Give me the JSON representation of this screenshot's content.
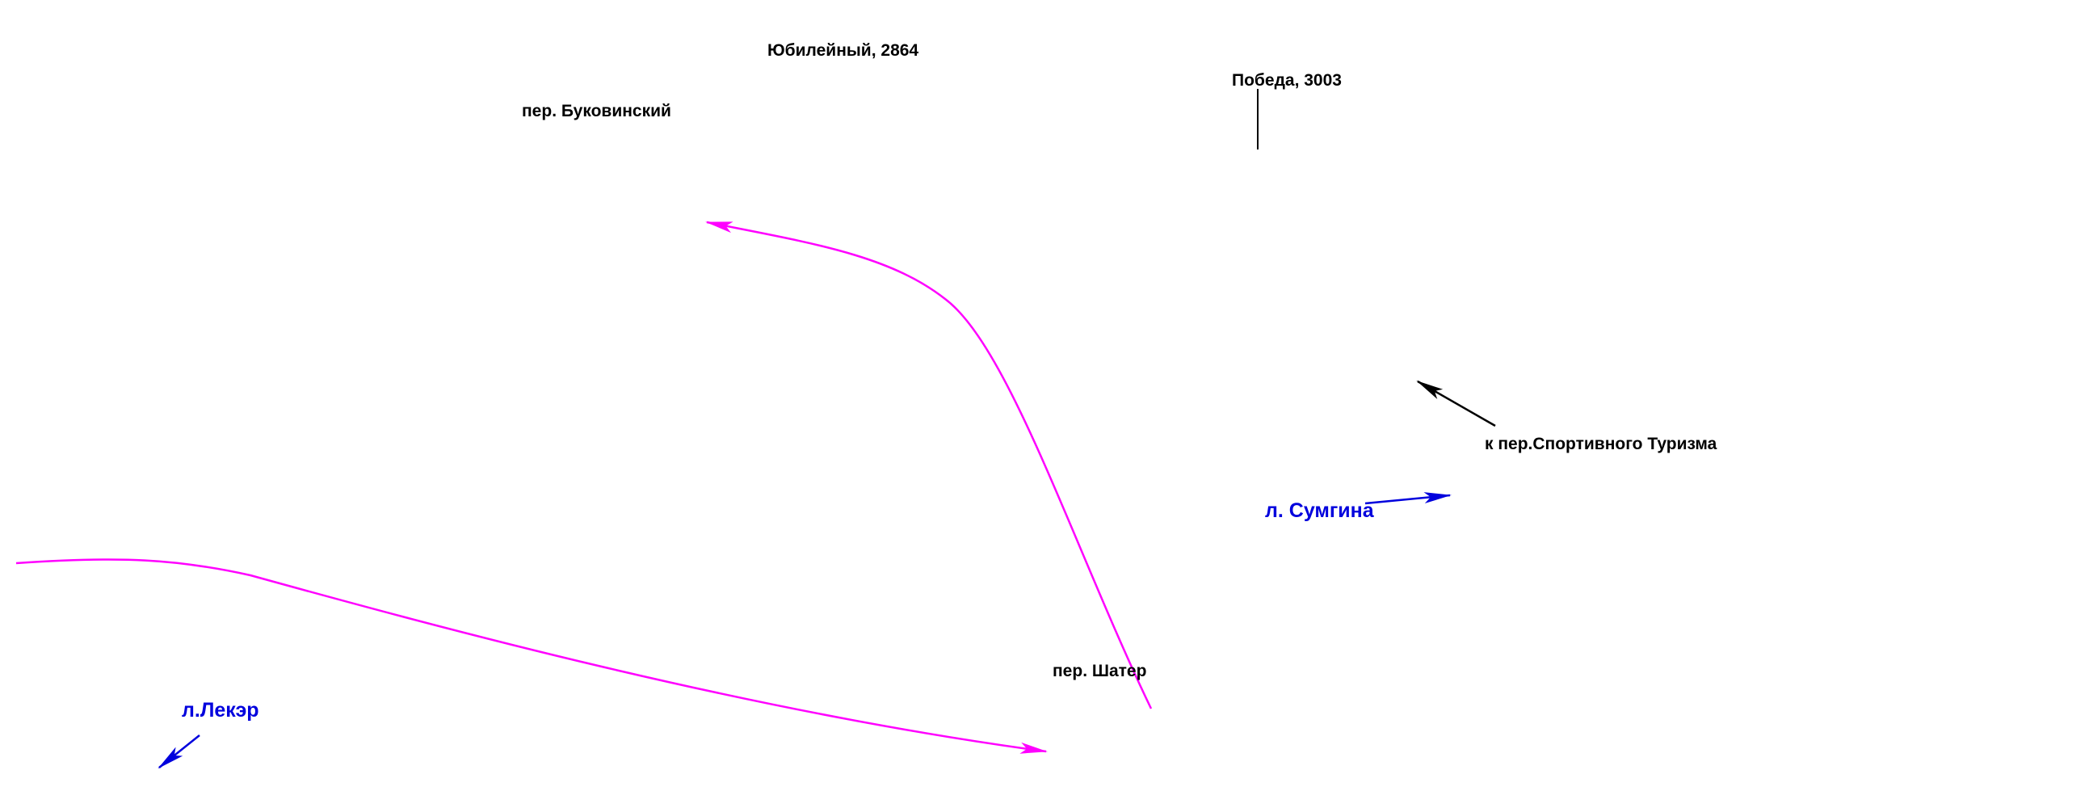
{
  "map": {
    "labels": {
      "yubileyny": "Юбилейный, 2864",
      "bukovinsky": "пер. Буковинский",
      "pobeda": "Победа, 3003",
      "sportivnogo": "к пер.Спортивного Туризма",
      "sumgina": "л. Сумгина",
      "shater": "пер. Шатер",
      "leker": "л.Лекэр"
    },
    "colors": {
      "route": "#ff00ff",
      "blue_text": "#0000dd",
      "black": "#000000"
    }
  }
}
